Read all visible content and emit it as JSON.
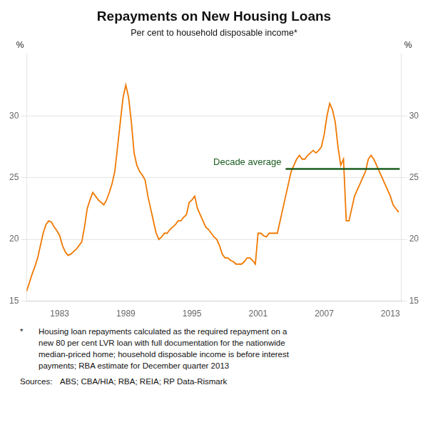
{
  "chart_data": {
    "type": "line",
    "title": "Repayments on New Housing Loans",
    "subtitle": "Per cent to household disposable income*",
    "ylabel": "%",
    "y2label": "%",
    "color": "#F07800",
    "grid": "y",
    "xlim": [
      1980.0,
      2014.0
    ],
    "xticks": [
      1983,
      1989,
      1995,
      2001,
      2007,
      2013
    ],
    "ylim": [
      15,
      35
    ],
    "yticks": [
      15,
      20,
      25,
      30
    ],
    "y2lim": [
      15,
      35
    ],
    "y2ticks": [
      15,
      20,
      25,
      30
    ],
    "annotations": [
      {
        "type": "hline",
        "label": "Decade average",
        "color": "#1A5C20",
        "y": 25.7,
        "x_start": 2003.5,
        "x_end": 2013.85
      }
    ],
    "footnote_marker": "*",
    "footnote_lines": [
      "Housing loan repayments calculated as the required repayment on a",
      "new 80 per cent LVR loan with full documentation for the nationwide",
      "median-priced home; household disposable income is before interest",
      "payments; RBA estimate for December quarter 2013"
    ],
    "sources_label": "Sources:",
    "sources_text": "ABS; CBA/HIA; RBA; REIA; RP Data-Rismark",
    "x": [
      1980.0,
      1980.25,
      1980.5,
      1980.75,
      1981.0,
      1981.25,
      1981.5,
      1981.75,
      1982.0,
      1982.25,
      1982.5,
      1982.75,
      1983.0,
      1983.25,
      1983.5,
      1983.75,
      1984.0,
      1984.25,
      1984.5,
      1984.75,
      1985.0,
      1985.25,
      1985.5,
      1985.75,
      1986.0,
      1986.25,
      1986.5,
      1986.75,
      1987.0,
      1987.25,
      1987.5,
      1987.75,
      1988.0,
      1988.25,
      1988.5,
      1988.75,
      1989.0,
      1989.25,
      1989.5,
      1989.75,
      1990.0,
      1990.25,
      1990.5,
      1990.75,
      1991.0,
      1991.25,
      1991.5,
      1991.75,
      1992.0,
      1992.25,
      1992.5,
      1992.75,
      1993.0,
      1993.25,
      1993.5,
      1993.75,
      1994.0,
      1994.25,
      1994.5,
      1994.75,
      1995.0,
      1995.25,
      1995.5,
      1995.75,
      1996.0,
      1996.25,
      1996.5,
      1996.75,
      1997.0,
      1997.25,
      1997.5,
      1997.75,
      1998.0,
      1998.25,
      1998.5,
      1998.75,
      1999.0,
      1999.25,
      1999.5,
      1999.75,
      2000.0,
      2000.25,
      2000.5,
      2000.75,
      2001.0,
      2001.25,
      2001.5,
      2001.75,
      2002.0,
      2002.25,
      2002.5,
      2002.75,
      2003.0,
      2003.25,
      2003.5,
      2003.75,
      2004.0,
      2004.25,
      2004.5,
      2004.75,
      2005.0,
      2005.25,
      2005.5,
      2005.75,
      2006.0,
      2006.25,
      2006.5,
      2006.75,
      2007.0,
      2007.25,
      2007.5,
      2007.75,
      2008.0,
      2008.25,
      2008.5,
      2008.75,
      2009.0,
      2009.25,
      2009.5,
      2009.75,
      2010.0,
      2010.25,
      2010.5,
      2010.75,
      2011.0,
      2011.25,
      2011.5,
      2011.75,
      2012.0,
      2012.25,
      2012.5,
      2012.75,
      2013.0,
      2013.25,
      2013.5,
      2013.75
    ],
    "values": [
      15.8,
      16.5,
      17.2,
      17.8,
      18.5,
      19.5,
      20.5,
      21.2,
      21.5,
      21.4,
      21.0,
      20.7,
      20.3,
      19.5,
      19.0,
      18.7,
      18.8,
      19.0,
      19.2,
      19.5,
      19.8,
      21.0,
      22.5,
      23.2,
      23.8,
      23.5,
      23.2,
      23.0,
      22.8,
      23.2,
      23.8,
      24.5,
      25.5,
      27.5,
      29.5,
      31.5,
      32.5,
      31.5,
      29.5,
      27.0,
      26.0,
      25.5,
      25.2,
      24.8,
      23.5,
      22.5,
      21.5,
      20.5,
      20.0,
      20.2,
      20.5,
      20.5,
      20.8,
      21.0,
      21.2,
      21.5,
      21.5,
      21.8,
      22.0,
      23.0,
      23.2,
      23.5,
      22.5,
      22.0,
      21.5,
      21.0,
      20.8,
      20.5,
      20.2,
      20.0,
      19.5,
      18.8,
      18.5,
      18.5,
      18.3,
      18.2,
      18.0,
      18.0,
      18.0,
      18.2,
      18.5,
      18.5,
      18.3,
      18.0,
      20.5,
      20.5,
      20.3,
      20.2,
      20.5,
      20.5,
      20.5,
      20.5,
      21.5,
      22.5,
      23.5,
      24.5,
      25.5,
      26.0,
      26.5,
      26.8,
      26.5,
      26.5,
      26.8,
      27.0,
      27.2,
      27.0,
      27.2,
      27.5,
      28.5,
      30.0,
      31.0,
      30.5,
      29.5,
      27.5,
      26.0,
      26.5,
      21.5,
      21.5,
      22.5,
      23.5,
      24.0,
      24.5,
      25.0,
      25.5,
      26.5,
      26.8,
      26.5,
      26.0,
      25.5,
      25.0,
      24.5,
      24.0,
      23.5,
      22.8,
      22.5,
      22.2
    ]
  }
}
